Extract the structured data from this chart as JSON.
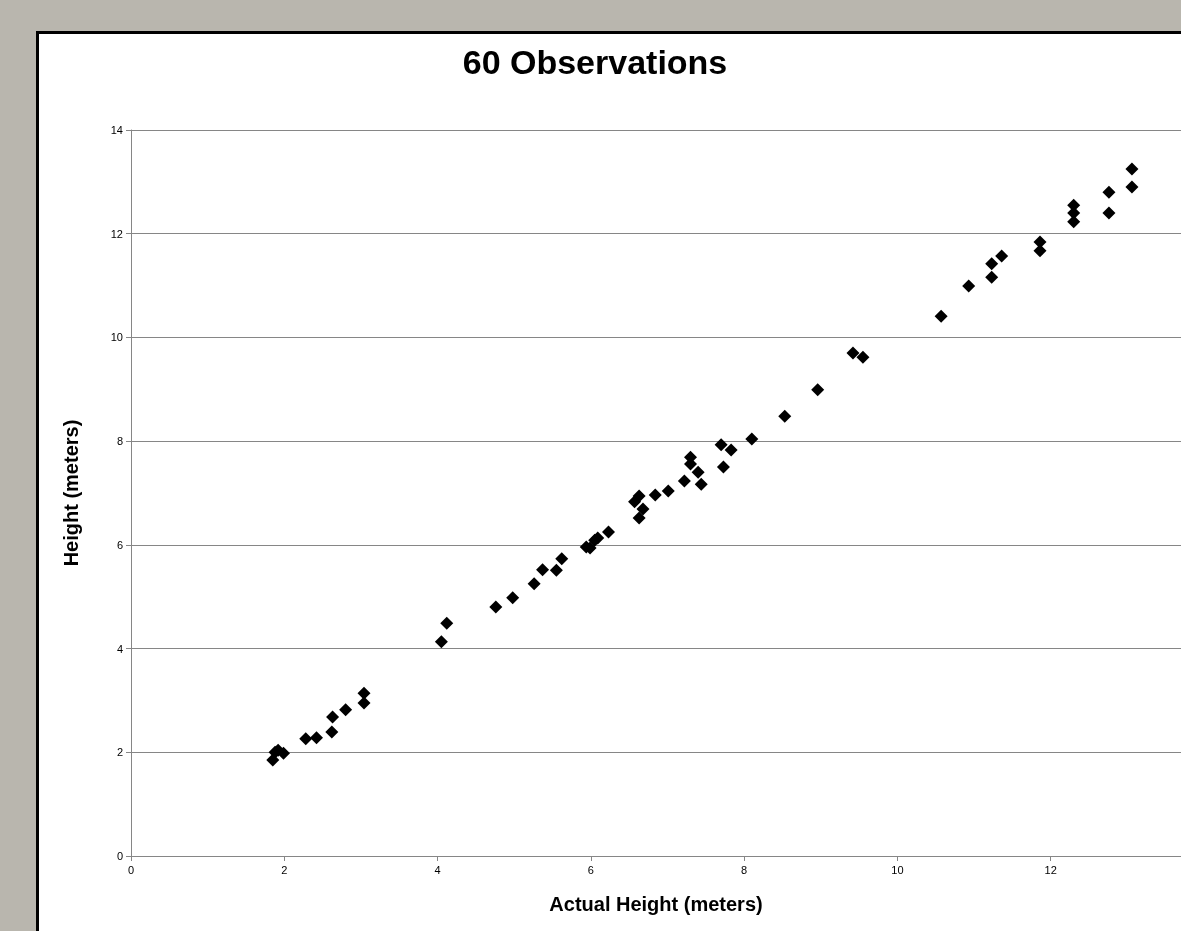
{
  "chart_data": {
    "type": "scatter",
    "title": "60 Observations",
    "xlabel": "Actual Height (meters)",
    "ylabel": "Height (meters)",
    "x": [
      1.85,
      1.88,
      1.92,
      1.99,
      2.28,
      2.42,
      2.62,
      2.63,
      2.8,
      3.04,
      3.04,
      4.05,
      4.12,
      4.76,
      4.98,
      5.26,
      5.37,
      5.55,
      5.62,
      5.94,
      5.99,
      6.05,
      6.09,
      6.23,
      6.57,
      6.63,
      6.68,
      6.63,
      6.84,
      7.01,
      7.22,
      7.3,
      7.3,
      7.4,
      7.44,
      7.7,
      7.83,
      7.73,
      8.1,
      8.53,
      8.96,
      9.42,
      9.55,
      10.57,
      10.93,
      11.23,
      11.23,
      11.36,
      11.86,
      11.86,
      12.3,
      12.3,
      12.3,
      12.76,
      12.76,
      13.06,
      13.06
    ],
    "values": [
      1.85,
      2.0,
      2.04,
      1.98,
      2.26,
      2.28,
      2.39,
      2.68,
      2.82,
      2.95,
      3.14,
      4.13,
      4.49,
      4.8,
      4.98,
      5.25,
      5.52,
      5.51,
      5.73,
      5.96,
      5.94,
      6.09,
      6.13,
      6.25,
      6.83,
      6.94,
      6.69,
      6.52,
      6.96,
      7.04,
      7.23,
      7.69,
      7.56,
      7.4,
      7.17,
      7.93,
      7.83,
      7.5,
      8.04,
      8.48,
      8.99,
      9.7,
      9.62,
      10.41,
      10.99,
      11.42,
      11.16,
      11.57,
      11.84,
      11.67,
      12.55,
      12.4,
      12.23,
      12.8,
      12.4,
      13.25,
      12.9
    ],
    "color": "#000000",
    "marker": "diamond",
    "xlim": [
      0,
      13.7
    ],
    "xticks": [
      0,
      2,
      4,
      6,
      8,
      10,
      12
    ],
    "ylim": [
      0,
      14
    ],
    "yticks": [
      0,
      2,
      4,
      6,
      8,
      10,
      12,
      14
    ],
    "grid": "y"
  }
}
